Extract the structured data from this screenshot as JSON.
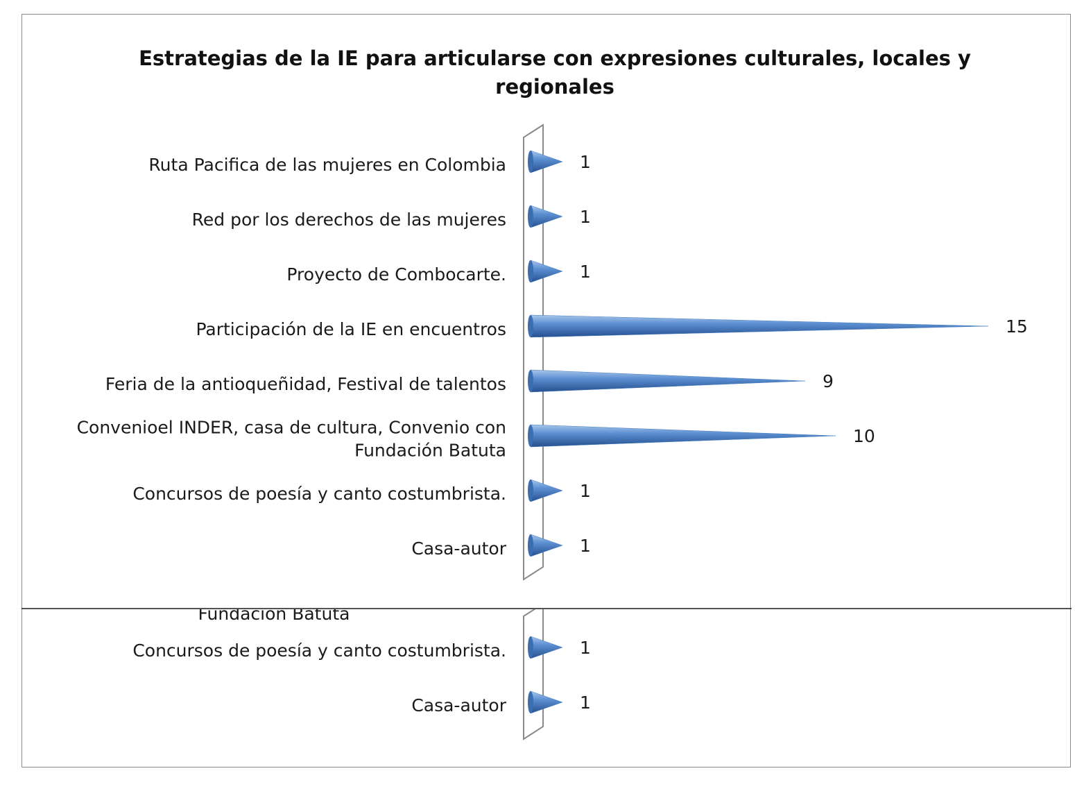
{
  "chart_data": {
    "type": "bar",
    "orientation": "horizontal",
    "title": "Estrategias de la IE para articularse con expresiones culturales, locales y regionales",
    "categories": [
      "Ruta Pacifica de las mujeres en Colombia",
      "Red por los derechos de las mujeres",
      "Proyecto de Combocarte.",
      "Participación de  la IE en encuentros",
      "Feria de la antioqueñidad, Festival de talentos",
      "Convenioel INDER, casa de cultura, Convenio con Fundación  Batuta",
      "Concursos de poesía y canto costumbrista.",
      "Casa-autor"
    ],
    "values": [
      1,
      1,
      1,
      15,
      9,
      10,
      1,
      1
    ],
    "data_labels": true,
    "bar_shape": "cone",
    "bar_color": "#4a7ebf",
    "legend": "none",
    "grid": false,
    "xlim": [
      0,
      15
    ]
  },
  "overlap_fragment": {
    "partial_label": "Fundación  Batuta",
    "categories": [
      "Concursos de poesía y canto costumbrista.",
      "Casa-autor"
    ],
    "values": [
      1,
      1
    ]
  }
}
